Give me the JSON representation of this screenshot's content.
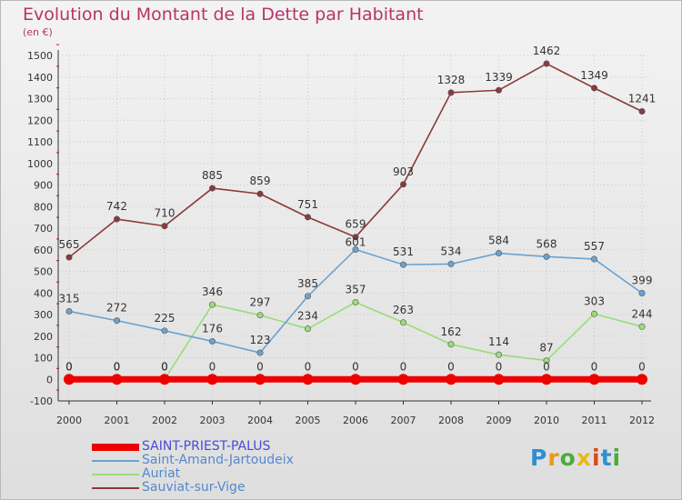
{
  "header": {
    "title": "Evolution du Montant de la Dette par Habitant",
    "subtitle": "(en €)"
  },
  "logo": {
    "letters": [
      "P",
      "r",
      "o",
      "x",
      "i",
      "t",
      "i"
    ],
    "colors": [
      "#2d8fd2",
      "#e89a1c",
      "#4cac3a",
      "#e8b81c",
      "#d94a1a",
      "#2d8fd2",
      "#4cac3a"
    ]
  },
  "chart_data": {
    "type": "line",
    "title": "Evolution du Montant de la Dette par Habitant",
    "ylabel": "(en €)",
    "x": [
      2000,
      2001,
      2002,
      2003,
      2004,
      2005,
      2006,
      2007,
      2008,
      2009,
      2010,
      2011,
      2012
    ],
    "xticks": [
      "2000",
      "2001",
      "2002",
      "2003",
      "2004",
      "2005",
      "2006",
      "2007",
      "2008",
      "2009",
      "2010",
      "2011",
      "2012"
    ],
    "ylim": [
      -100,
      1500
    ],
    "yticks": [
      -100,
      0,
      100,
      200,
      300,
      400,
      500,
      600,
      700,
      800,
      900,
      1000,
      1100,
      1200,
      1300,
      1400,
      1500
    ],
    "grid": true,
    "legend_position": "bottom-left",
    "series": [
      {
        "name": "SAINT-PRIEST-PALUS",
        "color": "#ee0000",
        "values": [
          0,
          0,
          0,
          0,
          0,
          0,
          0,
          0,
          0,
          0,
          0,
          0,
          0
        ],
        "thick": true
      },
      {
        "name": "Saint-Amand-Jartoudeix",
        "color": "#6ba2cf",
        "values": [
          315,
          272,
          225,
          176,
          123,
          385,
          601,
          531,
          534,
          584,
          568,
          557,
          399
        ]
      },
      {
        "name": "Auriat",
        "color": "#99dd77",
        "values": [
          0,
          0,
          0,
          346,
          297,
          234,
          357,
          263,
          162,
          114,
          87,
          303,
          244
        ]
      },
      {
        "name": "Sauviat-sur-Vige",
        "color": "#8a3a3a",
        "values": [
          565,
          742,
          710,
          885,
          859,
          751,
          659,
          903,
          1328,
          1339,
          1462,
          1349,
          1241
        ]
      }
    ],
    "data_labels": [
      {
        "series": 0,
        "labels": [
          "0",
          "0",
          "0",
          "0",
          "0",
          "0",
          "0",
          "0",
          "0",
          "0",
          "0",
          "0",
          "0"
        ]
      },
      {
        "series": 1,
        "labels": [
          "315",
          "272",
          "225",
          "176",
          "123",
          "385",
          "601",
          "531",
          "534",
          "584",
          "568",
          "557",
          "399"
        ]
      },
      {
        "series": 2,
        "labels": [
          "0",
          "0",
          "0",
          "346",
          "297",
          "234",
          "357",
          "263",
          "162",
          "114",
          "87",
          "303",
          "244"
        ]
      },
      {
        "series": 3,
        "labels": [
          "565",
          "742",
          "710",
          "885",
          "859",
          "751",
          "659",
          "903",
          "1328",
          "1339",
          "1462",
          "1349",
          "1241"
        ]
      }
    ]
  }
}
